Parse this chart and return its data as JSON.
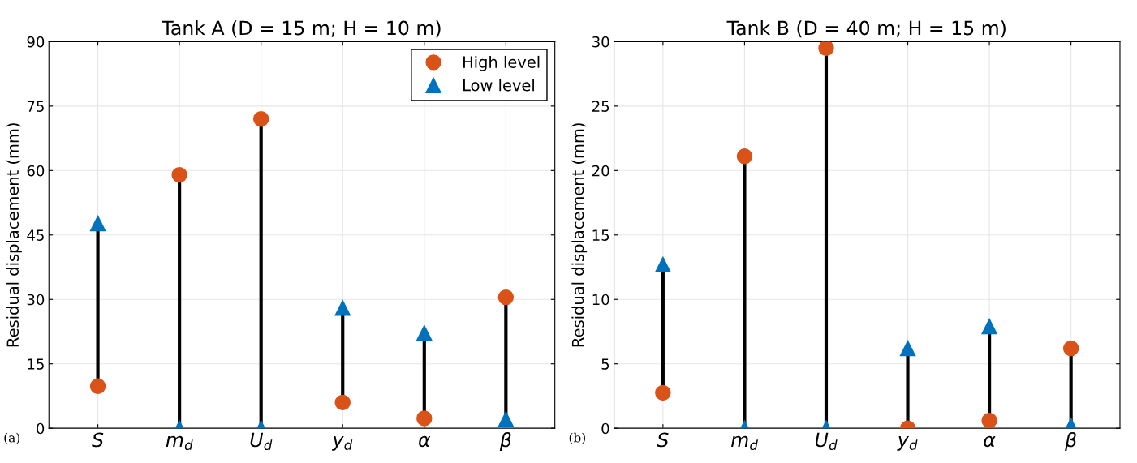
{
  "chart_data": [
    {
      "type": "scatter",
      "title": "Tank A (D = 15 m; H = 10 m)",
      "ylabel": "Residual displacement (mm)",
      "categories": [
        "S",
        "m$_{d}$",
        "U$_{d}$",
        "y$_{d}$",
        "α",
        "β"
      ],
      "ylim": [
        0,
        90
      ],
      "yticks": [
        0,
        15,
        30,
        45,
        60,
        75,
        90
      ],
      "grid": true,
      "legend": "top right",
      "annotations": [
        "(a)"
      ],
      "series": [
        {
          "name": "High level",
          "color": "#d95319",
          "marker": "circle",
          "values": [
            9.8,
            59.0,
            72.0,
            6.0,
            2.3,
            30.5
          ]
        },
        {
          "name": "Low level",
          "color": "#0072bd",
          "marker": "triangle",
          "values": [
            47.7,
            0,
            0,
            28.0,
            22.2,
            2.1
          ]
        }
      ]
    },
    {
      "type": "scatter",
      "title": "Tank B (D = 40 m; H = 15 m)",
      "ylabel": "Residual displacement (mm)",
      "categories": [
        "S",
        "m$_{d}$",
        "U$_{d}$",
        "y$_{d}$",
        "α",
        "β"
      ],
      "ylim": [
        0,
        30
      ],
      "yticks": [
        0,
        5,
        10,
        15,
        20,
        25,
        30
      ],
      "grid": true,
      "annotations": [
        "(b)"
      ],
      "series": [
        {
          "color": "#d95319",
          "marker": "circle",
          "values": [
            2.75,
            21.1,
            29.5,
            0,
            0.6,
            6.2
          ]
        },
        {
          "color": "#0072bd",
          "marker": "triangle",
          "values": [
            12.7,
            0,
            0,
            6.2,
            7.9,
            0.2
          ]
        }
      ]
    }
  ]
}
